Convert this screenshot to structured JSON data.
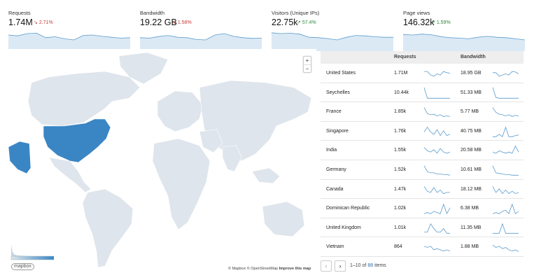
{
  "kpis": [
    {
      "label": "Requests",
      "value": "1.74M",
      "delta": "2.71%",
      "direction": "down",
      "spark": [
        0.72,
        0.68,
        0.78,
        0.8,
        0.6,
        0.64,
        0.55,
        0.5,
        0.7,
        0.72,
        0.66,
        0.62,
        0.58,
        0.6
      ]
    },
    {
      "label": "Bandwidth",
      "value": "19.22 GB",
      "delta": "1.58%",
      "direction": "down",
      "spark": [
        0.6,
        0.58,
        0.65,
        0.7,
        0.62,
        0.6,
        0.52,
        0.5,
        0.72,
        0.78,
        0.66,
        0.6,
        0.57,
        0.58
      ]
    },
    {
      "label": "Visitors (Unique IPs)",
      "value": "22.75k",
      "delta": "57.4%",
      "direction": "up",
      "spark": [
        0.82,
        0.78,
        0.8,
        0.76,
        0.62,
        0.6,
        0.56,
        0.5,
        0.62,
        0.7,
        0.68,
        0.64,
        0.62,
        0.62
      ]
    },
    {
      "label": "Page views",
      "value": "146.32k",
      "delta": "1.59%",
      "direction": "up",
      "spark": [
        0.74,
        0.72,
        0.76,
        0.73,
        0.65,
        0.6,
        0.58,
        0.55,
        0.62,
        0.66,
        0.62,
        0.6,
        0.55,
        0.5
      ]
    }
  ],
  "delta_arrows": {
    "down": "↘",
    "up": "↗"
  },
  "colors": {
    "spark_line": "#5b9ccc",
    "spark_fill": "#dbe9f5",
    "map_land": "#dfe5ec",
    "map_highlight": "#3a86c4",
    "map_alaska": "#3a86c4",
    "delta_down": "#c93b3b",
    "delta_up": "#2e8540"
  },
  "map": {
    "zoom_in": "+",
    "zoom_out": "−",
    "logo": "mapbox",
    "attribution_mapbox": "© Mapbox",
    "attribution_osm": "© OpenStreetMap",
    "attribution_improve": "Improve this map"
  },
  "table": {
    "headers": {
      "requests": "Requests",
      "bandwidth": "Bandwidth"
    },
    "rows": [
      {
        "country": "United States",
        "requests": "1.71M",
        "bandwidth": "18.95 GB",
        "req_spark": [
          0.7,
          0.7,
          0.4,
          0.3,
          0.5,
          0.4,
          0.7,
          0.6,
          0.55
        ],
        "bw_spark": [
          0.6,
          0.6,
          0.3,
          0.4,
          0.5,
          0.4,
          0.7,
          0.65,
          0.5
        ]
      },
      {
        "country": "Seychelles",
        "requests": "10.44k",
        "bandwidth": "51.33 MB",
        "req_spark": [
          1,
          0.1,
          0.1,
          0.1,
          0.1,
          0.1,
          0.1,
          0.1,
          0.1
        ],
        "bw_spark": [
          1,
          0.15,
          0.1,
          0.1,
          0.1,
          0.1,
          0.1,
          0.1,
          0.1
        ]
      },
      {
        "country": "France",
        "requests": "1.85k",
        "bandwidth": "5.77 MB",
        "req_spark": [
          0.9,
          0.4,
          0.3,
          0.35,
          0.2,
          0.3,
          0.15,
          0.2,
          0.15
        ],
        "bw_spark": [
          0.9,
          0.5,
          0.35,
          0.3,
          0.2,
          0.3,
          0.15,
          0.25,
          0.2
        ]
      },
      {
        "country": "Singapore",
        "requests": "1.76k",
        "bandwidth": "40.75 MB",
        "req_spark": [
          0.5,
          0.9,
          0.5,
          0.3,
          0.7,
          0.2,
          0.6,
          0.2,
          0.3
        ],
        "bw_spark": [
          0.1,
          0.1,
          0.3,
          0.1,
          0.9,
          0.1,
          0.1,
          0.2,
          0.25
        ]
      },
      {
        "country": "India",
        "requests": "1.55k",
        "bandwidth": "20.58 MB",
        "req_spark": [
          0.8,
          0.5,
          0.4,
          0.6,
          0.3,
          0.7,
          0.4,
          0.3,
          0.4
        ],
        "bw_spark": [
          0.4,
          0.3,
          0.5,
          0.4,
          0.3,
          0.4,
          0.3,
          0.9,
          0.4
        ]
      },
      {
        "country": "Germany",
        "requests": "1.52k",
        "bandwidth": "10.61 MB",
        "req_spark": [
          0.9,
          0.4,
          0.3,
          0.3,
          0.2,
          0.2,
          0.15,
          0.15,
          0.1
        ],
        "bw_spark": [
          0.9,
          0.3,
          0.25,
          0.2,
          0.15,
          0.15,
          0.1,
          0.1,
          0.1
        ]
      },
      {
        "country": "Canada",
        "requests": "1.47k",
        "bandwidth": "18.12 MB",
        "req_spark": [
          0.8,
          0.4,
          0.3,
          0.7,
          0.3,
          0.5,
          0.2,
          0.3,
          0.3
        ],
        "bw_spark": [
          0.8,
          0.3,
          0.6,
          0.2,
          0.5,
          0.2,
          0.4,
          0.2,
          0.3
        ]
      },
      {
        "country": "Dominican Republic",
        "requests": "1.02k",
        "bandwidth": "6.38 MB",
        "req_spark": [
          0.1,
          0.2,
          0.1,
          0.3,
          0.2,
          0.1,
          0.9,
          0.1,
          0.6
        ],
        "bw_spark": [
          0.1,
          0.2,
          0.1,
          0.3,
          0.4,
          0.1,
          0.9,
          0.1,
          0.3
        ]
      },
      {
        "country": "United Kingdom",
        "requests": "1.01k",
        "bandwidth": "11.35 MB",
        "req_spark": [
          0.2,
          0.2,
          0.9,
          0.5,
          0.2,
          0.2,
          0.5,
          0.1,
          0.1
        ],
        "bw_spark": [
          0.1,
          0.1,
          0.1,
          0.9,
          0.1,
          0.1,
          0.1,
          0.1,
          0.1
        ]
      },
      {
        "country": "Vietnam",
        "requests": "864",
        "bandwidth": "1.88 MB",
        "req_spark": [
          0.6,
          0.5,
          0.6,
          0.3,
          0.4,
          0.3,
          0.2,
          0.3,
          0.2
        ],
        "bw_spark": [
          0.7,
          0.5,
          0.6,
          0.4,
          0.5,
          0.3,
          0.2,
          0.3,
          0.15
        ]
      }
    ]
  },
  "pager": {
    "prev": "‹",
    "next": "›",
    "range": "1–10 of",
    "total": "88",
    "items": "items"
  }
}
